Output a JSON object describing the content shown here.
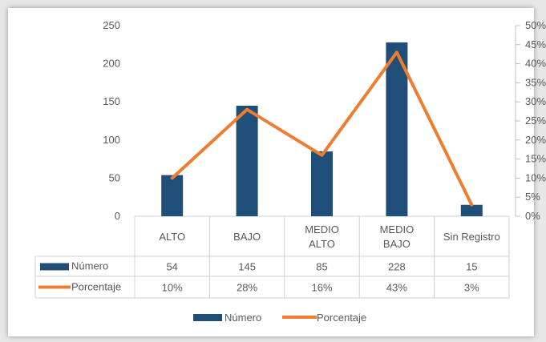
{
  "chart_data": {
    "type": "bar",
    "categories": [
      "ALTO",
      "BAJO",
      "MEDIO ALTO",
      "MEDIO BAJO",
      "Sin Registro"
    ],
    "category_lines": [
      [
        "ALTO"
      ],
      [
        "BAJO"
      ],
      [
        "MEDIO",
        "ALTO"
      ],
      [
        "MEDIO",
        "BAJO"
      ],
      [
        "Sin Registro"
      ]
    ],
    "series": [
      {
        "name": "Número",
        "type": "bar",
        "axis": "left",
        "color": "#1f4e79",
        "values": [
          54,
          145,
          85,
          228,
          15
        ],
        "labels": [
          "54",
          "145",
          "85",
          "228",
          "15"
        ]
      },
      {
        "name": "Porcentaje",
        "type": "line",
        "axis": "right",
        "color": "#ed7d31",
        "values": [
          10,
          28,
          16,
          43,
          3
        ],
        "labels": [
          "10%",
          "28%",
          "16%",
          "43%",
          "3%"
        ]
      }
    ],
    "y_left": {
      "lim": [
        0,
        250
      ],
      "ticks": [
        0,
        50,
        100,
        150,
        200,
        250
      ],
      "tick_labels": [
        "0",
        "50",
        "100",
        "150",
        "200",
        "250"
      ]
    },
    "y_right": {
      "lim": [
        0,
        50
      ],
      "ticks": [
        0,
        5,
        10,
        15,
        20,
        25,
        30,
        35,
        40,
        45,
        50
      ],
      "tick_labels": [
        "0%",
        "5%",
        "10%",
        "15%",
        "20%",
        "25%",
        "30%",
        "35%",
        "40%",
        "45%",
        "50%"
      ]
    },
    "grid": false,
    "data_table": true,
    "legend": {
      "position": "bottom",
      "entries": [
        "Número",
        "Porcentaje"
      ]
    },
    "title": "",
    "xlabel": "",
    "ylabel": ""
  }
}
